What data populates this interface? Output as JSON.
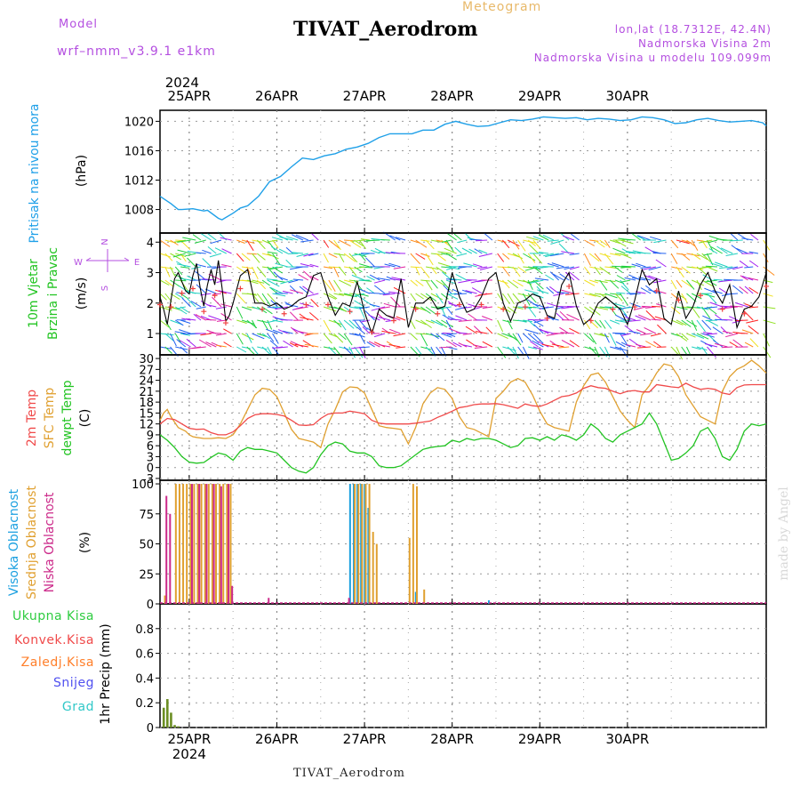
{
  "header": {
    "title": "TIVAT_Aerodrom",
    "model_label": "Model",
    "model_name": "wrf–nmm_v3.9.1  e1km",
    "meteogram_label": "Meteogram",
    "lonlat": "lon,lat (18.7312E, 42.4N)",
    "altitude": "Nadmorska Visina 2m",
    "model_altitude": "Nadmorska Visina u modelu 109.099m"
  },
  "footer": {
    "station": "TIVAT_Aerodrom"
  },
  "watermark": "made by Angel",
  "colors": {
    "pressure": "#1fa0e8",
    "wind_speed": "#000000",
    "gust_marker": "#f04040",
    "t2m": "#f04a4a",
    "sfc": "#e0a030",
    "dew": "#22c422",
    "cloud_high": "#1ca0e0",
    "cloud_mid": "#e0a030",
    "cloud_low": "#cc2a8a",
    "total_precip": "#2ecc40",
    "conv_precip": "#f04a4a",
    "frozen_precip": "#ff7f2a",
    "snow": "#5050f0",
    "graupel": "#30c8c8",
    "precip_bar": "#6b8e23"
  },
  "chart_data": [
    {
      "type": "line",
      "panel": "pressure",
      "ylabel": [
        "Pritisak na nivou mora",
        "(hPa)"
      ],
      "ylim": [
        1004.8,
        1021.5
      ],
      "yticks": [
        1008,
        1012,
        1016,
        1020
      ],
      "x_top_labels": [
        "25APR",
        "26APR",
        "27APR",
        "28APR",
        "29APR",
        "30APR"
      ],
      "x_top_year": "2024",
      "grid": true,
      "series": [
        {
          "hours": [
            0,
            3,
            5,
            6,
            9,
            12,
            13,
            16,
            17,
            20,
            22,
            24,
            27,
            30,
            33,
            36,
            39,
            42,
            45,
            48,
            51,
            54,
            57,
            60,
            63,
            66,
            69,
            72,
            75,
            78,
            81,
            84,
            87,
            90,
            93,
            96,
            99,
            102,
            105,
            108,
            111,
            114,
            117,
            120,
            123,
            126,
            129,
            132,
            135,
            138,
            141,
            144,
            147,
            150,
            153,
            156,
            159,
            162,
            165,
            166
          ],
          "values": [
            1009.8,
            1008.8,
            1008.0,
            1008.0,
            1008.1,
            1007.8,
            1007.9,
            1006.8,
            1006.6,
            1007.5,
            1008.2,
            1008.5,
            1009.8,
            1011.8,
            1012.5,
            1013.8,
            1015.0,
            1014.8,
            1015.3,
            1015.6,
            1016.2,
            1016.5,
            1017.0,
            1017.8,
            1018.3,
            1018.3,
            1018.3,
            1018.8,
            1018.8,
            1019.6,
            1020.0,
            1019.6,
            1019.3,
            1019.4,
            1019.8,
            1020.2,
            1020.1,
            1020.3,
            1020.6,
            1020.5,
            1020.4,
            1020.5,
            1020.2,
            1020.4,
            1020.3,
            1020.1,
            1020.2,
            1020.6,
            1020.5,
            1020.2,
            1019.7,
            1019.8,
            1020.2,
            1020.4,
            1020.1,
            1019.9,
            1020.0,
            1020.1,
            1019.8,
            1019.4
          ]
        }
      ]
    },
    {
      "type": "line",
      "panel": "wind",
      "ylabel": [
        "10m Vjetar",
        "Brzina i Pravac",
        "(m/s)"
      ],
      "compass": {
        "n": "N",
        "w": "W",
        "e": "E",
        "s": "S"
      },
      "ylim": [
        0.3,
        4.3
      ],
      "yticks": [
        1,
        2,
        3,
        4
      ],
      "grid": true,
      "series": [
        {
          "name": "speed",
          "hours": [
            0,
            1,
            2,
            3,
            4,
            5,
            6,
            7,
            8,
            9,
            10,
            11,
            12,
            13,
            14,
            15,
            16,
            17,
            18,
            19,
            20,
            22,
            24,
            26,
            28,
            30,
            32,
            34,
            36,
            38,
            40,
            42,
            44,
            46,
            48,
            50,
            52,
            54,
            56,
            58,
            60,
            62,
            64,
            66,
            68,
            70,
            72,
            74,
            76,
            78,
            80,
            82,
            84,
            86,
            88,
            90,
            92,
            94,
            96,
            98,
            100,
            102,
            104,
            106,
            108,
            110,
            112,
            114,
            116,
            118,
            120,
            122,
            124,
            126,
            128,
            130,
            132,
            134,
            136,
            138,
            140,
            142,
            144,
            146,
            148,
            150,
            152,
            154,
            156,
            158,
            160,
            162,
            164,
            166
          ],
          "values": [
            2.2,
            1.8,
            1.3,
            2.1,
            2.8,
            3.0,
            2.7,
            2.4,
            2.3,
            2.9,
            3.3,
            2.5,
            1.9,
            2.6,
            3.1,
            2.6,
            3.4,
            2.5,
            1.4,
            1.6,
            2.0,
            2.9,
            3.1,
            2.0,
            2.0,
            1.9,
            2.0,
            1.8,
            1.9,
            2.1,
            2.2,
            2.9,
            3.0,
            2.2,
            1.6,
            2.0,
            1.9,
            2.7,
            1.7,
            1.0,
            1.8,
            1.6,
            1.5,
            2.8,
            1.2,
            2.0,
            2.0,
            2.2,
            1.8,
            1.9,
            3.0,
            2.2,
            1.7,
            1.8,
            2.2,
            2.8,
            3.0,
            2.0,
            1.4,
            2.0,
            2.1,
            2.3,
            2.2,
            1.6,
            1.5,
            2.6,
            3.0,
            1.9,
            1.3,
            1.5,
            2.0,
            2.2,
            2.0,
            1.8,
            1.3,
            2.1,
            3.1,
            2.6,
            2.8,
            1.5,
            1.3,
            2.4,
            1.5,
            1.9,
            2.6,
            3.0,
            2.4,
            2.0,
            2.6,
            1.2,
            1.8,
            1.9,
            2.2,
            3.0
          ]
        }
      ],
      "wind_barbs": true
    },
    {
      "type": "line",
      "panel": "temperature",
      "ylabel": [
        "2m Temp",
        "SFC Temp",
        "dewpt Temp",
        "(C)"
      ],
      "ylim": [
        -3.5,
        31
      ],
      "yticks": [
        -3,
        0,
        3,
        6,
        9,
        12,
        15,
        18,
        21,
        24,
        27,
        30
      ],
      "grid": true,
      "series": [
        {
          "name": "2m Temp",
          "hours": [
            0,
            2,
            4,
            6,
            8,
            10,
            12,
            14,
            16,
            18,
            20,
            22,
            24,
            26,
            28,
            30,
            32,
            34,
            36,
            38,
            40,
            42,
            44,
            46,
            48,
            50,
            52,
            54,
            56,
            58,
            60,
            62,
            64,
            66,
            68,
            70,
            72,
            74,
            76,
            78,
            80,
            82,
            84,
            86,
            88,
            90,
            92,
            94,
            96,
            98,
            100,
            102,
            104,
            106,
            108,
            110,
            112,
            114,
            116,
            118,
            120,
            122,
            124,
            126,
            128,
            130,
            132,
            134,
            136,
            138,
            140,
            142,
            144,
            146,
            148,
            150,
            152,
            154,
            156,
            158,
            160,
            162,
            164,
            166
          ],
          "values": [
            12.0,
            13.5,
            13.2,
            12.0,
            10.8,
            10.5,
            10.6,
            9.6,
            9.0,
            9.0,
            9.8,
            11.5,
            13.5,
            14.5,
            14.8,
            14.8,
            14.6,
            14.2,
            13.0,
            11.7,
            11.6,
            11.8,
            13.5,
            14.7,
            15.0,
            15.0,
            15.5,
            15.2,
            14.8,
            13.0,
            12.2,
            12.0,
            12.0,
            12.0,
            12.0,
            12.2,
            12.5,
            12.8,
            13.8,
            14.6,
            15.5,
            16.5,
            16.8,
            17.3,
            17.5,
            17.5,
            17.6,
            17.3,
            16.8,
            16.3,
            17.5,
            17.0,
            16.8,
            17.5,
            18.5,
            19.5,
            19.8,
            20.5,
            21.8,
            22.5,
            22.0,
            21.8,
            21.0,
            20.3,
            21.0,
            21.2,
            20.8,
            20.8,
            22.8,
            22.5,
            22.2,
            22.0,
            23.2,
            22.2,
            21.5,
            21.8,
            21.5,
            20.5,
            20.1,
            22.0,
            22.7,
            22.8,
            22.8,
            22.8
          ]
        },
        {
          "name": "SFC Temp",
          "hours": [
            0,
            1,
            2,
            3,
            4,
            5,
            6,
            7,
            8,
            9,
            10,
            12,
            14,
            16,
            18,
            20,
            22,
            24,
            26,
            28,
            30,
            32,
            34,
            36,
            38,
            40,
            42,
            44,
            46,
            48,
            50,
            52,
            54,
            56,
            58,
            60,
            62,
            64,
            66,
            68,
            70,
            72,
            74,
            76,
            78,
            80,
            82,
            84,
            86,
            88,
            90,
            92,
            94,
            96,
            98,
            100,
            102,
            104,
            106,
            108,
            110,
            112,
            114,
            116,
            118,
            120,
            122,
            124,
            126,
            128,
            130,
            132,
            134,
            136,
            138,
            140,
            142,
            144,
            146,
            148,
            150,
            152,
            154,
            156,
            158,
            160,
            162,
            164,
            166
          ],
          "values": [
            13,
            15,
            16,
            14,
            12.5,
            11,
            10.5,
            10,
            9,
            8.5,
            8.3,
            8,
            8,
            8.2,
            8,
            9,
            12,
            16,
            20,
            21.8,
            21.5,
            19.5,
            15,
            10.5,
            8,
            7.5,
            7,
            5.5,
            12,
            16,
            20.8,
            22.2,
            22,
            20.5,
            16,
            11.5,
            11,
            10.8,
            10.5,
            6.5,
            11,
            17.5,
            20.5,
            22,
            21.5,
            19,
            14,
            11,
            10.5,
            9.5,
            8.5,
            19,
            21,
            23.5,
            24.5,
            23.5,
            20,
            15.5,
            12,
            11,
            10.5,
            10,
            18,
            22.5,
            25.5,
            26,
            23.5,
            19.5,
            15.5,
            13,
            11,
            20,
            22.5,
            26,
            28.5,
            28,
            25,
            20,
            17,
            14,
            13,
            12,
            21,
            25,
            27,
            28,
            29.5,
            28,
            26
          ]
        },
        {
          "name": "dewpt Temp",
          "hours": [
            0,
            2,
            4,
            6,
            8,
            10,
            12,
            14,
            16,
            18,
            20,
            22,
            24,
            26,
            28,
            30,
            32,
            34,
            36,
            38,
            40,
            42,
            44,
            46,
            48,
            50,
            52,
            54,
            56,
            58,
            60,
            62,
            64,
            66,
            68,
            70,
            72,
            74,
            76,
            78,
            80,
            82,
            84,
            86,
            88,
            90,
            92,
            94,
            96,
            98,
            100,
            102,
            104,
            106,
            108,
            110,
            112,
            114,
            116,
            118,
            120,
            122,
            124,
            126,
            128,
            130,
            132,
            134,
            136,
            138,
            140,
            142,
            144,
            146,
            148,
            150,
            152,
            154,
            156,
            158,
            160,
            162,
            164,
            166
          ],
          "values": [
            9,
            7.5,
            5.5,
            3,
            1.5,
            1.2,
            1.4,
            2.8,
            4,
            3.5,
            2,
            4.5,
            5.5,
            5,
            5,
            4.5,
            4,
            2,
            0,
            -1,
            -1.5,
            0,
            3.5,
            6,
            7,
            6.5,
            4.5,
            4,
            4,
            3,
            0.5,
            0,
            0,
            0.5,
            2,
            3.5,
            5,
            5.5,
            5.8,
            6,
            7.5,
            7,
            8,
            7.5,
            8,
            8,
            7.5,
            6.5,
            5.5,
            6,
            8,
            8.2,
            7.5,
            8.5,
            7.5,
            9,
            8.5,
            7.5,
            9,
            12,
            10.5,
            8,
            7,
            9,
            10,
            11,
            12,
            15,
            12,
            7,
            2,
            2.5,
            4,
            6,
            10,
            11,
            8,
            3,
            2,
            5,
            10,
            12,
            11.5,
            12
          ]
        }
      ]
    },
    {
      "type": "bar",
      "panel": "clouds",
      "ylabel": [
        "Visoka Oblacnost",
        "Srednja Oblacnost",
        "Niska Oblacnost",
        "(%)"
      ],
      "ylim": [
        0,
        103
      ],
      "yticks": [
        0,
        25,
        50,
        75,
        100
      ],
      "grid": true,
      "series": [
        {
          "name": "Visoka Oblacnost",
          "hours": [
            52,
            53,
            54,
            55,
            56,
            57,
            70,
            90
          ],
          "values": [
            100,
            100,
            100,
            100,
            100,
            80,
            10,
            3
          ]
        },
        {
          "name": "Srednja Oblacnost",
          "hours": [
            1,
            4,
            5,
            6,
            7,
            8,
            9,
            10,
            11,
            12,
            13,
            14,
            15,
            16,
            17,
            18,
            19,
            53,
            54,
            55,
            56,
            57,
            58,
            59,
            68,
            69,
            70,
            72
          ],
          "values": [
            7,
            100,
            100,
            100,
            100,
            100,
            100,
            100,
            100,
            100,
            100,
            100,
            100,
            100,
            100,
            100,
            100,
            100,
            100,
            100,
            100,
            100,
            60,
            50,
            55,
            100,
            98,
            12
          ]
        },
        {
          "name": "Niska Oblacnost",
          "hours": [
            2,
            3,
            9,
            11,
            13,
            15,
            17,
            19,
            20,
            30,
            52
          ],
          "values": [
            90,
            75,
            100,
            100,
            100,
            100,
            98,
            100,
            15,
            5,
            5
          ]
        }
      ]
    },
    {
      "type": "bar",
      "panel": "precip",
      "ylabel": [
        "1hr Precip (mm)"
      ],
      "legend": [
        "Ukupna Kisa",
        "Konvek.Kisa",
        "Zaledj.Kisa",
        "Snijeg",
        "Grad"
      ],
      "ylim": [
        0,
        1.0
      ],
      "yticks": [
        0,
        0.2,
        0.4,
        0.6,
        0.8
      ],
      "x_bottom_labels": [
        "25APR",
        "26APR",
        "27APR",
        "28APR",
        "29APR",
        "30APR"
      ],
      "x_bottom_year": "2024",
      "grid": true,
      "series": [
        {
          "name": "Ukupna Kisa",
          "hours": [
            1,
            2,
            3,
            4,
            5
          ],
          "values": [
            0.16,
            0.23,
            0.12,
            0.02,
            0.01
          ]
        }
      ]
    }
  ]
}
